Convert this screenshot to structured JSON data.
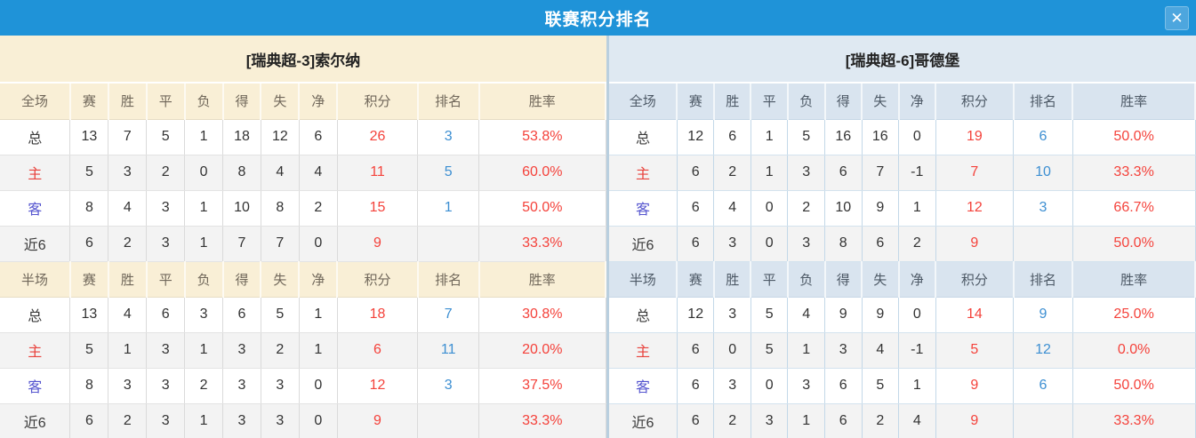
{
  "titlebar": {
    "title": "联赛积分排名",
    "close_icon": "✕"
  },
  "stat_columns": [
    "赛",
    "胜",
    "平",
    "负",
    "得",
    "失",
    "净",
    "积分",
    "排名",
    "胜率"
  ],
  "teams": [
    {
      "name": "[瑞典超-3]索尔纳",
      "theme": "cream",
      "sections": [
        {
          "scope_label": "全场",
          "rows": [
            {
              "label": "总",
              "label_style": "neutral",
              "cells": [
                "13",
                "7",
                "5",
                "1",
                "18",
                "12",
                "6"
              ],
              "points": "26",
              "rank": "3",
              "rate": "53.8%"
            },
            {
              "label": "主",
              "label_style": "home",
              "cells": [
                "5",
                "3",
                "2",
                "0",
                "8",
                "4",
                "4"
              ],
              "points": "11",
              "rank": "5",
              "rate": "60.0%"
            },
            {
              "label": "客",
              "label_style": "away",
              "cells": [
                "8",
                "4",
                "3",
                "1",
                "10",
                "8",
                "2"
              ],
              "points": "15",
              "rank": "1",
              "rate": "50.0%"
            },
            {
              "label": "近6",
              "label_style": "neutral",
              "cells": [
                "6",
                "2",
                "3",
                "1",
                "7",
                "7",
                "0"
              ],
              "points": "9",
              "rank": "",
              "rate": "33.3%"
            }
          ]
        },
        {
          "scope_label": "半场",
          "rows": [
            {
              "label": "总",
              "label_style": "neutral",
              "cells": [
                "13",
                "4",
                "6",
                "3",
                "6",
                "5",
                "1"
              ],
              "points": "18",
              "rank": "7",
              "rate": "30.8%"
            },
            {
              "label": "主",
              "label_style": "home",
              "cells": [
                "5",
                "1",
                "3",
                "1",
                "3",
                "2",
                "1"
              ],
              "points": "6",
              "rank": "11",
              "rate": "20.0%"
            },
            {
              "label": "客",
              "label_style": "away",
              "cells": [
                "8",
                "3",
                "3",
                "2",
                "3",
                "3",
                "0"
              ],
              "points": "12",
              "rank": "3",
              "rate": "37.5%"
            },
            {
              "label": "近6",
              "label_style": "neutral",
              "cells": [
                "6",
                "2",
                "3",
                "1",
                "3",
                "3",
                "0"
              ],
              "points": "9",
              "rank": "",
              "rate": "33.3%"
            }
          ]
        }
      ]
    },
    {
      "name": "[瑞典超-6]哥德堡",
      "theme": "blue",
      "sections": [
        {
          "scope_label": "全场",
          "rows": [
            {
              "label": "总",
              "label_style": "neutral",
              "cells": [
                "12",
                "6",
                "1",
                "5",
                "16",
                "16",
                "0"
              ],
              "points": "19",
              "rank": "6",
              "rate": "50.0%"
            },
            {
              "label": "主",
              "label_style": "home",
              "cells": [
                "6",
                "2",
                "1",
                "3",
                "6",
                "7",
                "-1"
              ],
              "points": "7",
              "rank": "10",
              "rate": "33.3%"
            },
            {
              "label": "客",
              "label_style": "away",
              "cells": [
                "6",
                "4",
                "0",
                "2",
                "10",
                "9",
                "1"
              ],
              "points": "12",
              "rank": "3",
              "rate": "66.7%"
            },
            {
              "label": "近6",
              "label_style": "neutral",
              "cells": [
                "6",
                "3",
                "0",
                "3",
                "8",
                "6",
                "2"
              ],
              "points": "9",
              "rank": "",
              "rate": "50.0%"
            }
          ]
        },
        {
          "scope_label": "半场",
          "rows": [
            {
              "label": "总",
              "label_style": "neutral",
              "cells": [
                "12",
                "3",
                "5",
                "4",
                "9",
                "9",
                "0"
              ],
              "points": "14",
              "rank": "9",
              "rate": "25.0%"
            },
            {
              "label": "主",
              "label_style": "home",
              "cells": [
                "6",
                "0",
                "5",
                "1",
                "3",
                "4",
                "-1"
              ],
              "points": "5",
              "rank": "12",
              "rate": "0.0%"
            },
            {
              "label": "客",
              "label_style": "away",
              "cells": [
                "6",
                "3",
                "0",
                "3",
                "6",
                "5",
                "1"
              ],
              "points": "9",
              "rank": "6",
              "rate": "50.0%"
            },
            {
              "label": "近6",
              "label_style": "neutral",
              "cells": [
                "6",
                "2",
                "3",
                "1",
                "6",
                "2",
                "4"
              ],
              "points": "9",
              "rank": "",
              "rate": "33.3%"
            }
          ]
        }
      ]
    }
  ],
  "colors": {
    "titlebar_bg": "#1f93d8",
    "close_btn_bg": "#4da6de",
    "points_red": "#f4423b",
    "rank_blue": "#3d8fd2",
    "home_label_red": "#e8423c",
    "away_label_blue": "#5555cf",
    "left_panel_tint": "#f9efd6",
    "right_panel_tint": "#dfe9f2",
    "right_header_tint": "#d9e4ef",
    "stripe_gray": "#f3f3f3"
  }
}
